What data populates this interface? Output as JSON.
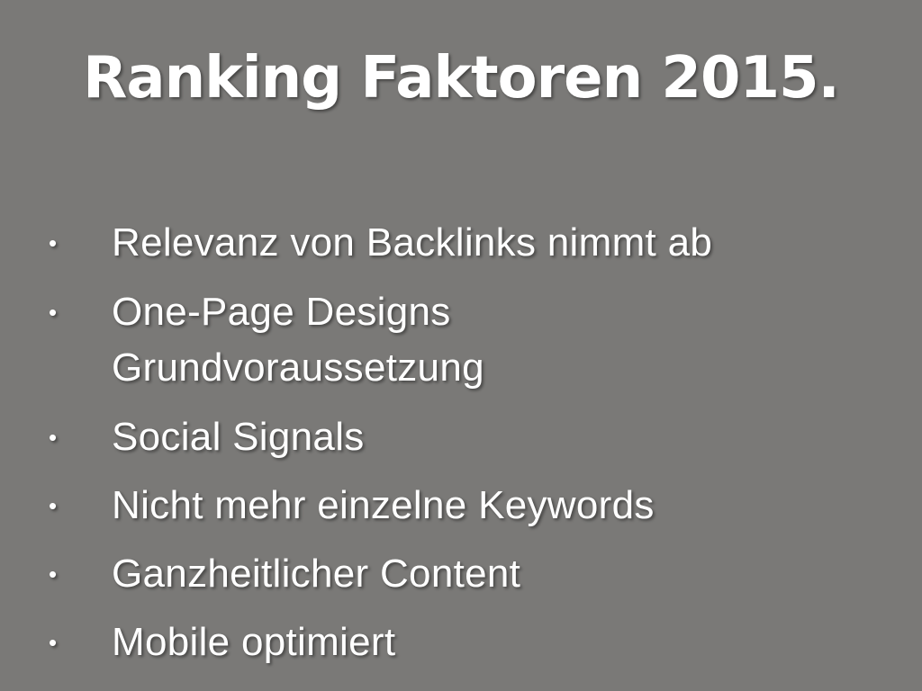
{
  "slide": {
    "title": "Ranking Faktoren 2015.",
    "bullets": [
      "Relevanz von Backlinks nimmt ab",
      "One-Page Designs\nGrundvoraussetzung",
      "Social Signals",
      "Nicht mehr einzelne Keywords",
      "Ganzheitlicher Content",
      "Mobile optimiert"
    ],
    "bullet_glyph": "•"
  }
}
